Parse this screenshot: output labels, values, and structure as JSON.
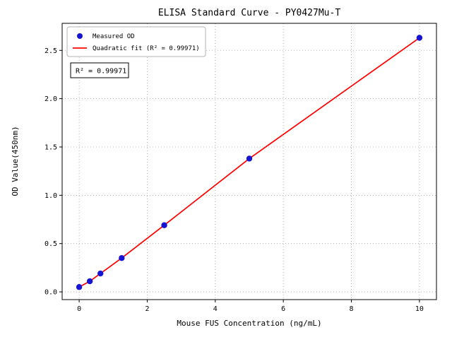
{
  "chart_data": {
    "type": "scatter",
    "title": "ELISA Standard Curve - PY0427Mu-T",
    "xlabel": "Mouse FUS Concentration (ng/mL)",
    "ylabel": "OD Value(450nm)",
    "xlim": [
      -0.5,
      10.5
    ],
    "ylim": [
      -0.08,
      2.78
    ],
    "xticks": [
      0,
      2,
      4,
      6,
      8,
      10
    ],
    "yticks": [
      0.0,
      0.5,
      1.0,
      1.5,
      2.0,
      2.5
    ],
    "grid": true,
    "annotation": "R² = 0.99971",
    "legend": {
      "position": "upper-left",
      "entries": [
        {
          "label": "Measured OD",
          "marker": "dot",
          "color": "#1414d2"
        },
        {
          "label": "Quadratic fit (R² = 0.99971)",
          "marker": "line",
          "color": "#ff0000"
        }
      ]
    },
    "series": [
      {
        "name": "Measured OD",
        "type": "scatter",
        "color": "#1414d2",
        "x": [
          0,
          0.3125,
          0.625,
          1.25,
          2.5,
          5,
          10
        ],
        "y": [
          0.05,
          0.11,
          0.19,
          0.35,
          0.69,
          1.38,
          2.63
        ]
      },
      {
        "name": "Quadratic fit (R² = 0.99971)",
        "type": "line",
        "color": "#ff0000",
        "x": [
          0,
          0.3125,
          0.625,
          1.25,
          2.5,
          5,
          10
        ],
        "y": [
          0.05,
          0.11,
          0.19,
          0.35,
          0.69,
          1.38,
          2.63
        ]
      }
    ],
    "colors": {
      "grid": "#9a9a9a",
      "axis": "#000000",
      "background": "#ffffff",
      "legend_border": "#b3b3b3",
      "annotation_border": "#000000"
    }
  }
}
